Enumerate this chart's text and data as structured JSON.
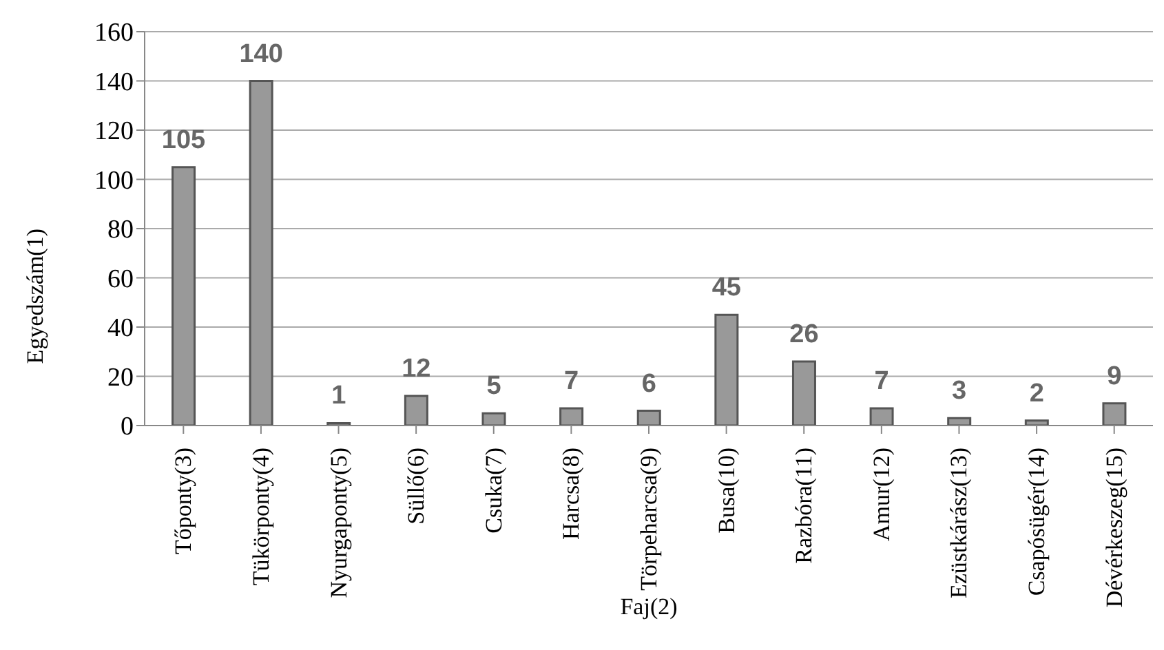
{
  "chart_data": {
    "type": "bar",
    "xlabel": "Faj(2)",
    "ylabel": "Egyedszám(1)",
    "categories": [
      "Tőponty(3)",
      "Tükörponty(4)",
      "Nyurgaponty(5)",
      "Süllő(6)",
      "Csuka(7)",
      "Harcsa(8)",
      "Törpeharcsa(9)",
      "Busa(10)",
      "Razbóra(11)",
      "Amur(12)",
      "Ezüstkárász(13)",
      "Csapósügér(14)",
      "Dévérkeszeg(15)"
    ],
    "values": [
      105,
      140,
      1,
      12,
      5,
      7,
      6,
      45,
      26,
      7,
      3,
      2,
      9
    ],
    "color": "#999999",
    "ylim": [
      0,
      160
    ],
    "yticks": [
      0,
      20,
      40,
      60,
      80,
      100,
      120,
      140,
      160
    ],
    "grid": "y",
    "data_labels": true
  }
}
